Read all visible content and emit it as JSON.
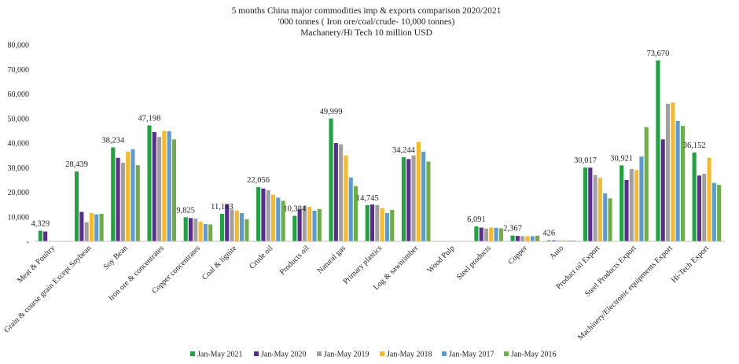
{
  "chart_data": {
    "type": "bar",
    "title": "5 months China major commodities imp & exports comparison 2020/2021",
    "subtitle": "'000 tonnes ( Iron ore/coal/crude- 10,000 tonnes)",
    "subtitle2": "Machanery/Hi Tech 10 million USD",
    "xlabel": "",
    "ylabel": "",
    "ylim": [
      0,
      80000
    ],
    "yticks": [
      "-",
      "10,000",
      "20,000",
      "30,000",
      "40,000",
      "50,000",
      "60,000",
      "70,000",
      "80,000"
    ],
    "ytick_values": [
      0,
      10000,
      20000,
      30000,
      40000,
      50000,
      60000,
      70000,
      80000
    ],
    "grid": false,
    "legend_position": "bottom",
    "categories": [
      "Meat & Poultry",
      "Grain & course grain Except Soybean",
      "Soy Bean",
      "Iron ore & concentrates",
      "Copper concentrates",
      "Coal & lignite",
      "Crude oil",
      "Products oil",
      "Natural gas",
      "Primary plastics",
      "Log & sawntimber",
      "Wood Pulp",
      "Steel products",
      "Copper",
      "Auto",
      "Product oil Export",
      "Steel Products Export",
      "Machinery/Electronic equipments Export",
      "Hi-Tech Export"
    ],
    "series": [
      {
        "name": "Jan-May  2021",
        "color": "#1fa33e",
        "values": [
          4329,
          28439,
          38234,
          47198,
          9825,
          11183,
          22056,
          10384,
          49999,
          14745,
          34244,
          0,
          6091,
          2367,
          426,
          30017,
          30921,
          73670,
          36152
        ]
      },
      {
        "name": "Jan-May 2020",
        "color": "#5b2c8f",
        "values": [
          4000,
          12000,
          34000,
          44500,
          9500,
          15000,
          21500,
          13000,
          40000,
          15000,
          33500,
          0,
          5600,
          2200,
          400,
          30000,
          25000,
          41500,
          26800
        ]
      },
      {
        "name": "Jan-May 2019",
        "color": "#a0a0a0",
        "values": [
          0,
          7800,
          32000,
          42500,
          9300,
          13000,
          20800,
          14500,
          39500,
          14800,
          35000,
          0,
          5200,
          2100,
          380,
          27000,
          29500,
          56000,
          27500
        ]
      },
      {
        "name": "Jan-May 2018",
        "color": "#f7b928",
        "values": [
          0,
          11500,
          36500,
          45000,
          8000,
          12500,
          19000,
          14000,
          35000,
          13500,
          40500,
          0,
          5600,
          2100,
          360,
          25800,
          29000,
          56500,
          34000
        ]
      },
      {
        "name": "Jan-May 2017",
        "color": "#5b9bd5",
        "values": [
          0,
          11000,
          37500,
          44800,
          7000,
          11500,
          17800,
          12500,
          26000,
          11500,
          36500,
          0,
          5500,
          2100,
          340,
          19500,
          34500,
          49000,
          23800
        ]
      },
      {
        "name": "Jan-May 2016",
        "color": "#70ad47",
        "values": [
          0,
          11200,
          31000,
          41500,
          6900,
          9000,
          16500,
          13200,
          22500,
          12800,
          32500,
          0,
          5300,
          2300,
          330,
          17500,
          46500,
          47000,
          23000
        ]
      }
    ],
    "data_labels": [
      "4,329",
      "28,439",
      "38,234",
      "47,198",
      "9,825",
      "11,183",
      "22,056",
      "10,384",
      "49,999",
      "14,745",
      "34,244",
      "",
      "6,091",
      "2,367",
      "426",
      "30,017",
      "30,921",
      "73,670",
      "36,152"
    ]
  }
}
